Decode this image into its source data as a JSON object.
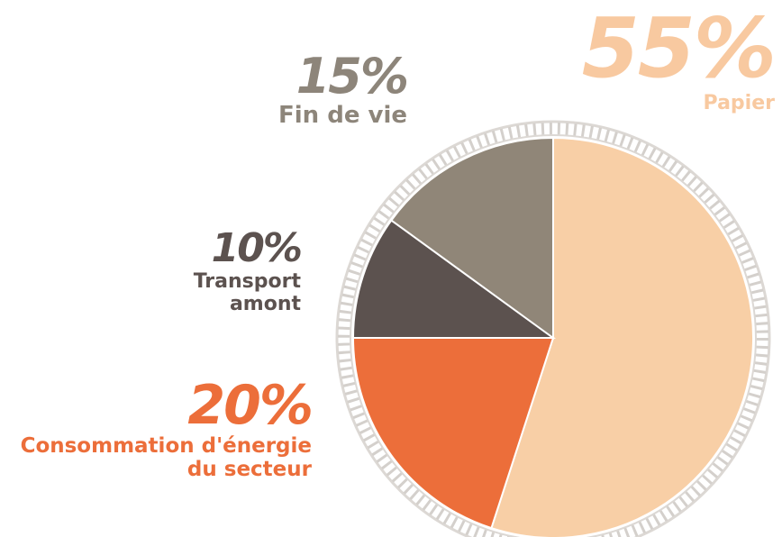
{
  "chart_data": {
    "type": "pie",
    "categories": [
      "Papier",
      "Consommation d'énergie\ndu secteur",
      "Transport\namont",
      "Fin de vie"
    ],
    "values": [
      55,
      20,
      10,
      15
    ],
    "value_labels": [
      "55%",
      "20%",
      "10%",
      "15%"
    ],
    "colors": [
      "#f8cfa6",
      "#ec6e3a",
      "#5c524f",
      "#908678"
    ]
  }
}
